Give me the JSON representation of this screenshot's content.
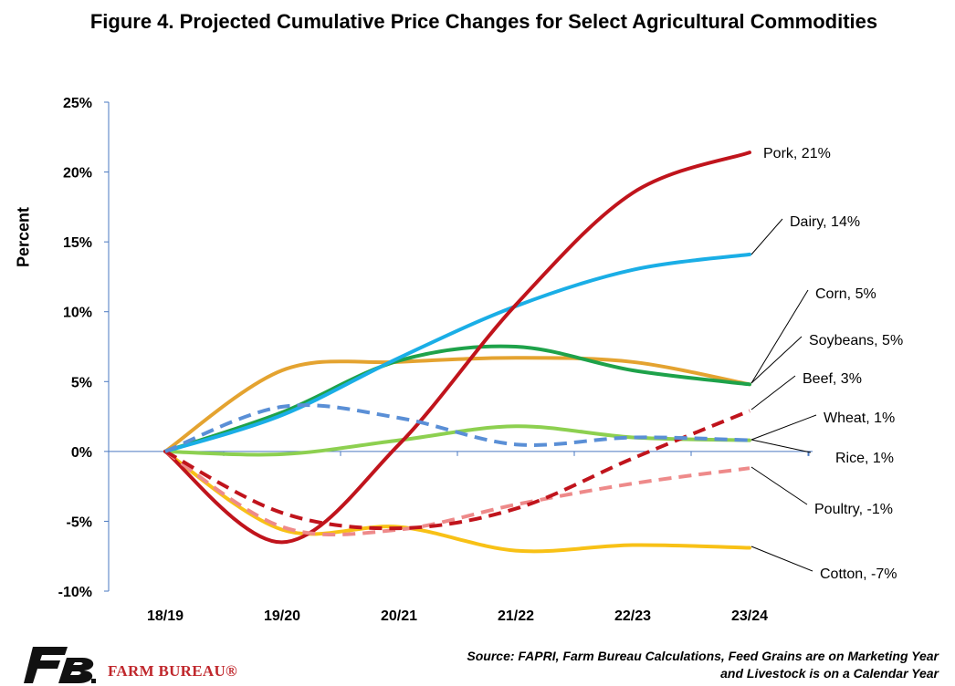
{
  "title": "Figure 4. Projected Cumulative Price Changes for Select Agricultural Commodities",
  "source": {
    "line1": "Source: FAPRI, Farm Bureau Calculations, Feed Grains are on Marketing Year",
    "line2": "and Livestock is on a Calendar Year"
  },
  "logo": {
    "text": "FARM BUREAU®",
    "letters": "FB"
  },
  "chart_data": {
    "type": "line",
    "title": "Figure 4. Projected Cumulative Price Changes for Select Agricultural Commodities",
    "xlabel": "",
    "ylabel": "Percent",
    "categories": [
      "18/19",
      "19/20",
      "20/21",
      "21/22",
      "22/23",
      "23/24"
    ],
    "ylim": [
      -10,
      25
    ],
    "yticks": [
      25,
      20,
      15,
      10,
      5,
      0,
      -5,
      -10
    ],
    "ytick_labels": [
      "25%",
      "20%",
      "15%",
      "10%",
      "5%",
      "0%",
      "-5%",
      "-10%"
    ],
    "grid": false,
    "series": [
      {
        "name": "Pork",
        "label": "Pork, 21%",
        "color": "#c0141c",
        "dashed": false,
        "values": [
          0,
          -6.5,
          0.5,
          10.5,
          18.5,
          21.4
        ]
      },
      {
        "name": "Dairy",
        "label": "Dairy, 14%",
        "color": "#1aaee6",
        "dashed": false,
        "values": [
          0,
          2.6,
          6.7,
          10.4,
          13.0,
          14.1
        ]
      },
      {
        "name": "Corn",
        "label": "Corn, 5%",
        "color": "#e4a330",
        "dashed": false,
        "values": [
          0,
          5.8,
          6.4,
          6.7,
          6.4,
          4.8
        ]
      },
      {
        "name": "Soybeans",
        "label": "Soybeans, 5%",
        "color": "#1ea24a",
        "dashed": false,
        "values": [
          0,
          2.8,
          6.5,
          7.5,
          5.8,
          4.8
        ]
      },
      {
        "name": "Beef",
        "label": "Beef, 3%",
        "color": "#c0141c",
        "dashed": true,
        "values": [
          0,
          -4.4,
          -5.5,
          -4.1,
          -0.5,
          2.9
        ]
      },
      {
        "name": "Wheat",
        "label": "Wheat, 1%",
        "color": "#8dd050",
        "dashed": false,
        "values": [
          0,
          -0.2,
          0.8,
          1.8,
          1.0,
          0.8
        ]
      },
      {
        "name": "Rice",
        "label": "Rice, 1%",
        "color": "#5a8fd6",
        "dashed": true,
        "values": [
          0,
          3.2,
          2.4,
          0.5,
          1.0,
          0.8
        ]
      },
      {
        "name": "Poultry",
        "label": "Poultry, -1%",
        "color": "#ee8a8a",
        "dashed": true,
        "values": [
          0,
          -5.4,
          -5.6,
          -3.8,
          -2.3,
          -1.2
        ]
      },
      {
        "name": "Cotton",
        "label": "Cotton, -7%",
        "color": "#f8c116",
        "dashed": false,
        "values": [
          0,
          -5.6,
          -5.4,
          -7.1,
          -6.7,
          -6.9
        ]
      }
    ]
  }
}
